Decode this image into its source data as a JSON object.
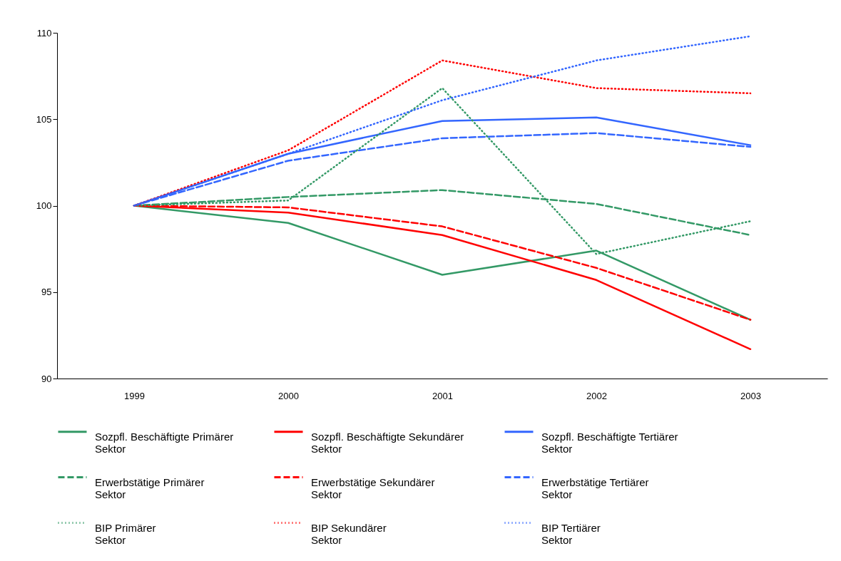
{
  "chart_data": {
    "type": "line",
    "categories": [
      "1999",
      "2000",
      "2001",
      "2002",
      "2003"
    ],
    "ylim": [
      90,
      110
    ],
    "yticks": [
      90,
      95,
      100,
      105,
      110
    ],
    "grid": false,
    "legend": "bottom",
    "marker": "none",
    "series": [
      {
        "name": "Sozpfl. Beschäftigte Primärer Sektor",
        "color": "#339966",
        "line_style": "solid",
        "values": [
          100,
          99.0,
          96.0,
          97.4,
          93.4
        ]
      },
      {
        "name": "Sozpfl. Beschäftigte Sekundärer Sektor",
        "color": "#ff0000",
        "line_style": "solid",
        "values": [
          100,
          99.6,
          98.3,
          95.7,
          91.7
        ]
      },
      {
        "name": "Sozpfl. Beschäftigte Tertiärer Sektor",
        "color": "#3366ff",
        "line_style": "solid",
        "values": [
          100,
          103.0,
          104.9,
          105.1,
          103.5
        ]
      },
      {
        "name": "Erwerbstätige Primärer Sektor",
        "color": "#339966",
        "line_style": "dashed",
        "values": [
          100,
          100.5,
          100.9,
          100.1,
          98.3
        ]
      },
      {
        "name": "Erwerbstätige Sekundärer Sektor",
        "color": "#ff0000",
        "line_style": "dashed",
        "values": [
          100,
          99.9,
          98.8,
          96.4,
          93.4
        ]
      },
      {
        "name": "Erwerbstätige Tertiärer Sektor",
        "color": "#3366ff",
        "line_style": "dashed",
        "values": [
          100,
          102.6,
          103.9,
          104.2,
          103.4
        ]
      },
      {
        "name": "BIP Primärer Sektor",
        "color": "#339966",
        "line_style": "dotted",
        "values": [
          100,
          100.3,
          106.8,
          97.2,
          99.1
        ]
      },
      {
        "name": "BIP Sekundärer Sektor",
        "color": "#ff0000",
        "line_style": "dotted",
        "values": [
          100,
          103.2,
          108.4,
          106.8,
          106.5
        ]
      },
      {
        "name": "BIP Tertiärer Sektor",
        "color": "#3366ff",
        "line_style": "dotted",
        "values": [
          100,
          103.0,
          106.1,
          108.4,
          109.8
        ]
      }
    ]
  }
}
